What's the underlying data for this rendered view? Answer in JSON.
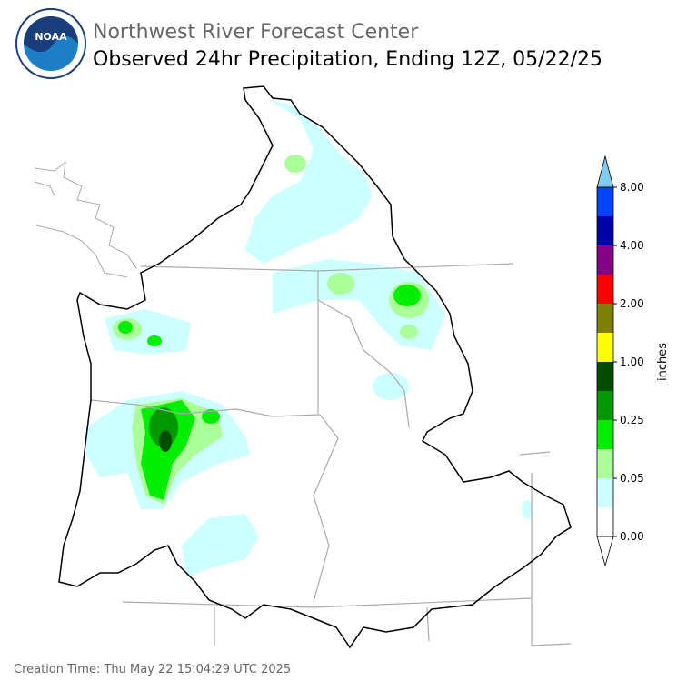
{
  "header": {
    "logo": "NOAA",
    "organization": "Northwest River Forecast Center",
    "title": "Observed 24hr Precipitation, Ending 12Z, 05/22/25"
  },
  "legend": {
    "label": "inches",
    "colors": [
      "#ffffff",
      "#ccffff",
      "#aaff99",
      "#00ee00",
      "#009900",
      "#004d00",
      "#ffff00",
      "#808000",
      "#ff0000",
      "#880088",
      "#0000aa",
      "#0044ff"
    ],
    "over_color": "#7fccee",
    "under_color": "#ffffff",
    "ticks": [
      "0.00",
      "0.05",
      "0.25",
      "1.00",
      "2.00",
      "4.00",
      "8.00"
    ]
  },
  "footer": {
    "creation_time": "Creation Time: Thu May 22 15:04:29 UTC 2025"
  }
}
